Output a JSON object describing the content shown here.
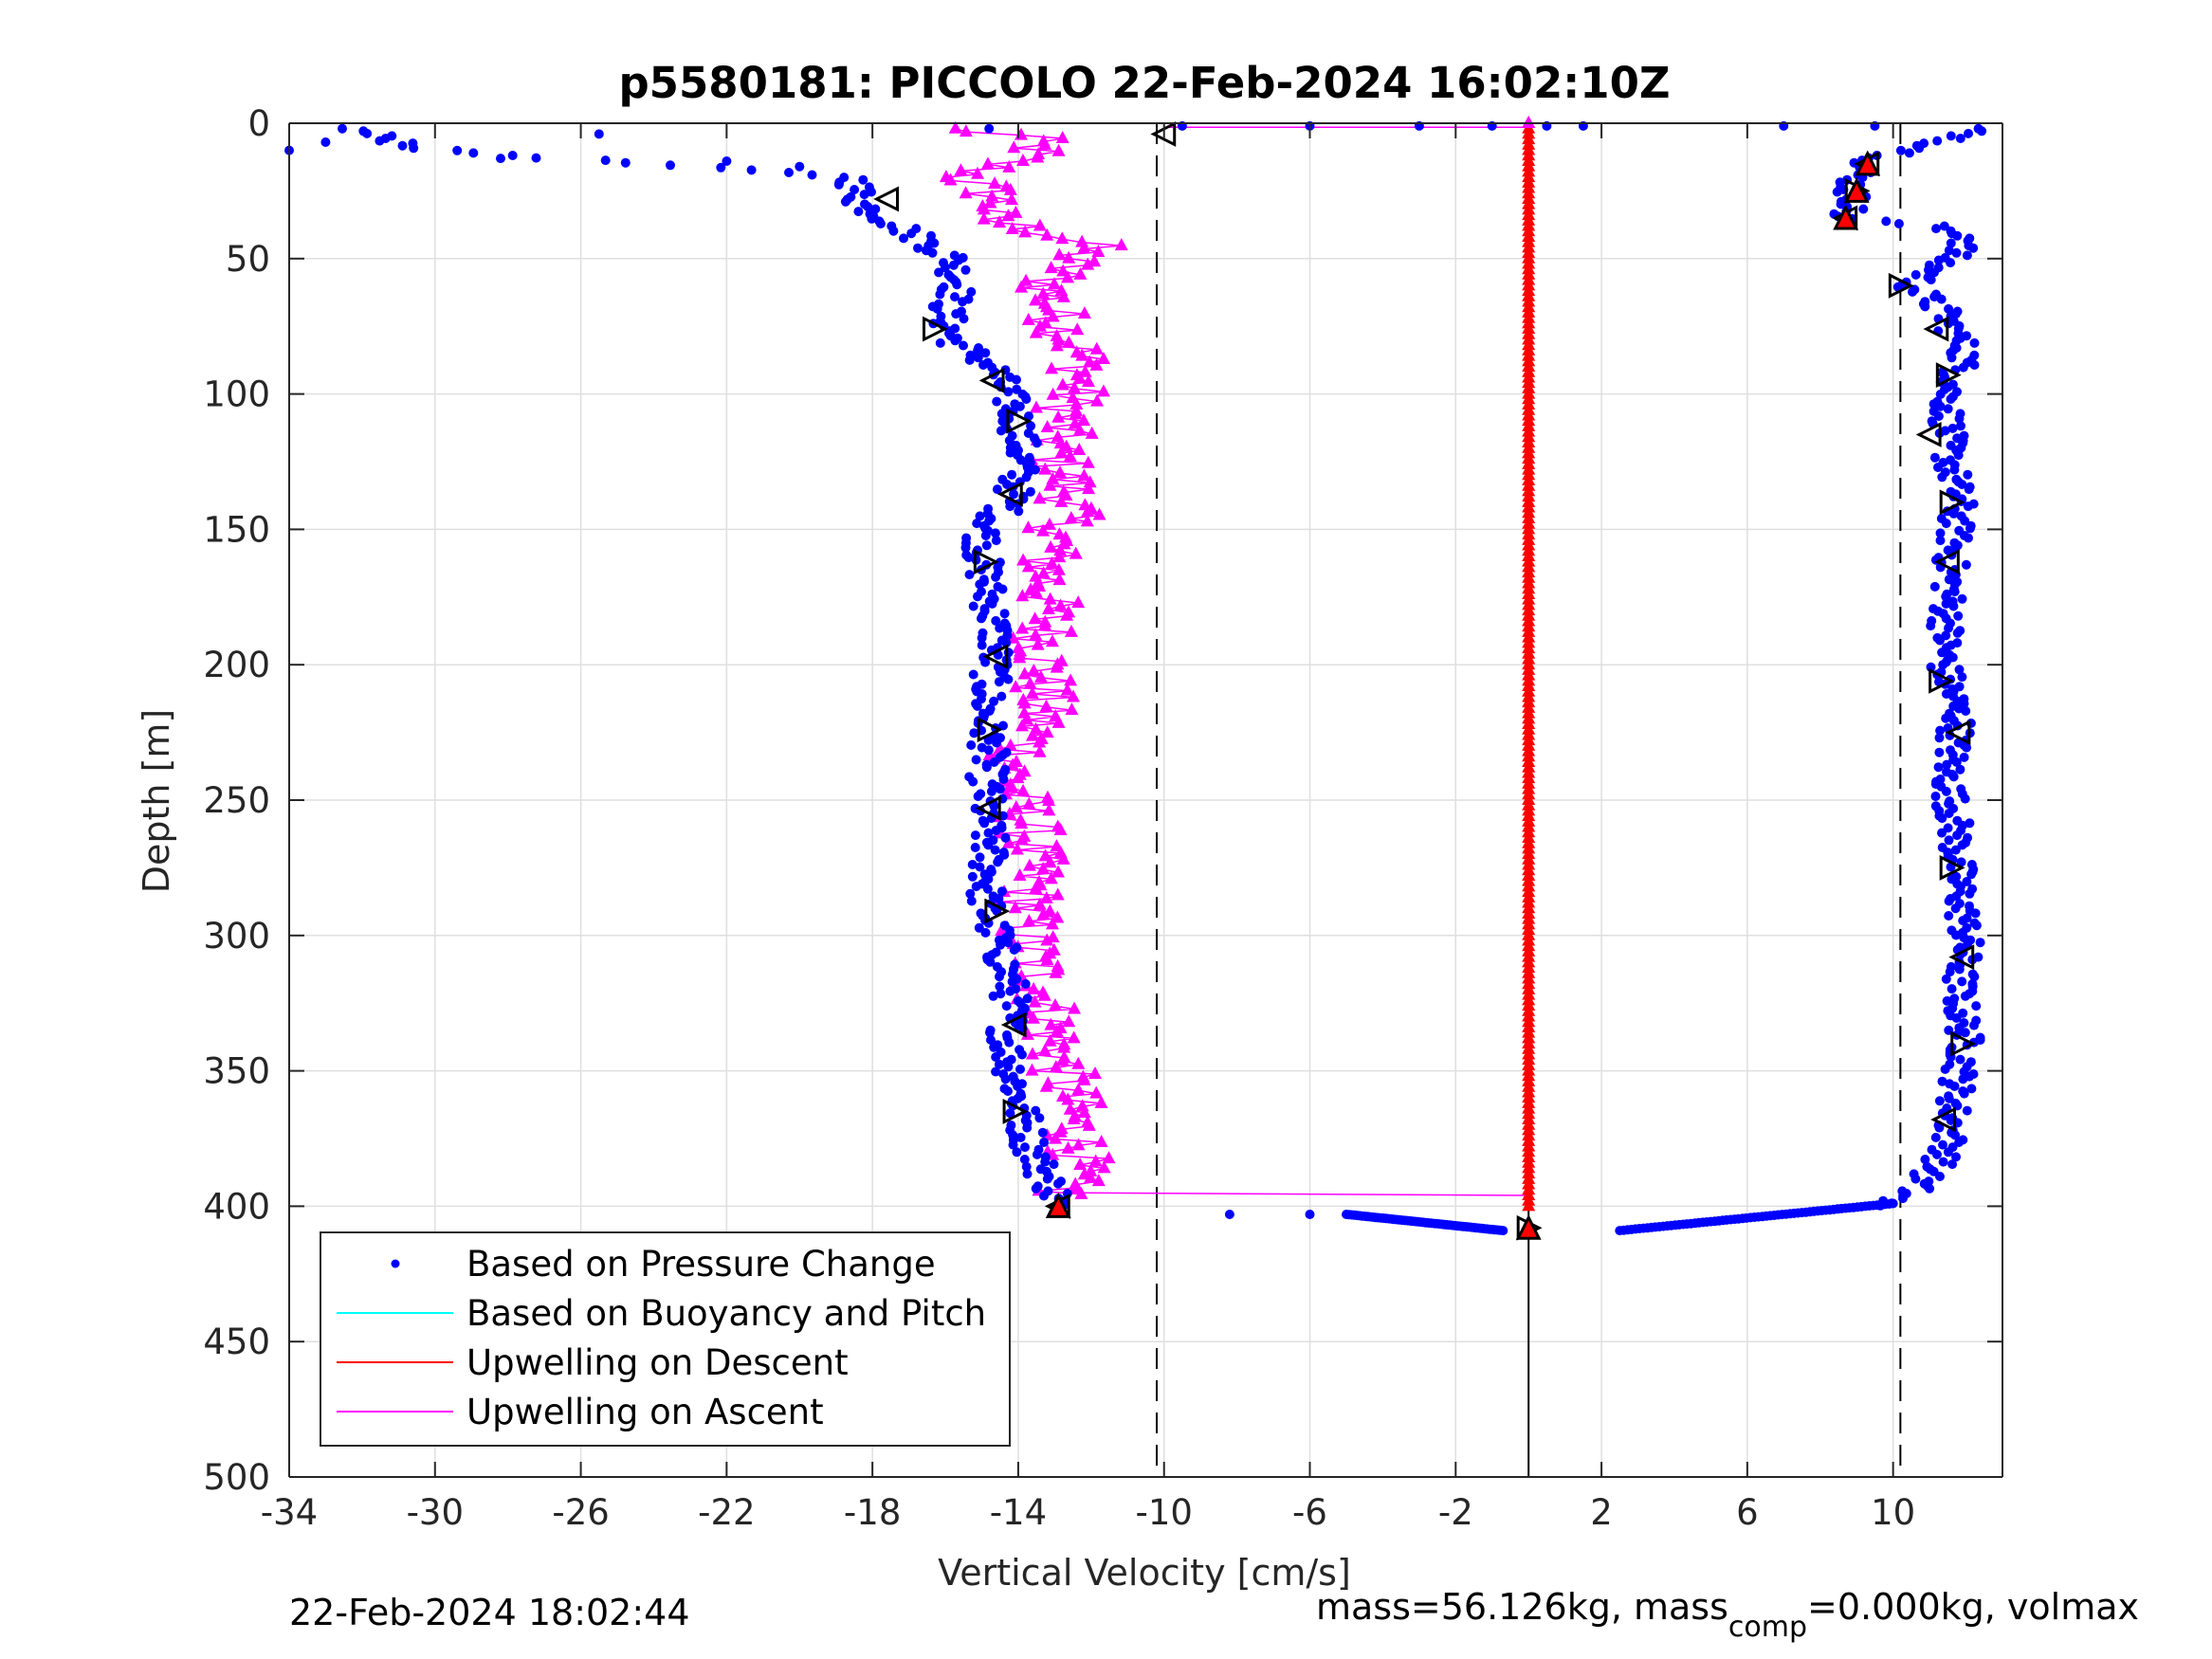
{
  "chart_data": {
    "type": "scatter",
    "title": "p5580181: PICCOLO 22-Feb-2024 16:02:10Z",
    "xlabel": "Vertical Velocity [cm/s]",
    "ylabel": "Depth [m]",
    "xlim": [
      -34,
      13
    ],
    "ylim": [
      0,
      500
    ],
    "y_reversed": true,
    "grid": true,
    "xticks": [
      -34,
      -30,
      -26,
      -22,
      -18,
      -14,
      -10,
      -6,
      -2,
      2,
      6,
      10
    ],
    "xtick_labels": [
      "-34",
      "-30",
      "-26",
      "-22",
      "-18",
      "-14",
      "-10",
      "-6",
      "-2",
      "2",
      "6",
      "10"
    ],
    "yticks": [
      0,
      50,
      100,
      150,
      200,
      250,
      300,
      350,
      400,
      450,
      500
    ],
    "ytick_labels": [
      "0",
      "50",
      "100",
      "150",
      "200",
      "250",
      "300",
      "350",
      "400",
      "450",
      "500"
    ],
    "legend_position": "bottom-left",
    "legend": [
      {
        "label": "Based on Pressure Change",
        "color": "#0000ff",
        "marker": "dot"
      },
      {
        "label": "Based on Buoyancy and Pitch",
        "color": "#00ffff",
        "marker": "line"
      },
      {
        "label": "Upwelling on Descent",
        "color": "#ff0000",
        "marker": "line"
      },
      {
        "label": "Upwelling on Ascent",
        "color": "#ff00ff",
        "marker": "line"
      }
    ],
    "vertical_reference_lines": [
      {
        "x": -10.2,
        "style": "dashed",
        "color": "#000000"
      },
      {
        "x": 10.2,
        "style": "dashed",
        "color": "#000000"
      },
      {
        "x": 0,
        "style": "solid",
        "color": "#000000"
      }
    ],
    "series": [
      {
        "name": "Based on Pressure Change",
        "color": "#0000ff",
        "descent": {
          "depth": [
            0,
            10,
            20,
            30,
            40,
            50,
            60,
            70,
            80,
            90,
            100,
            110,
            125,
            140,
            150,
            160,
            175,
            190,
            200,
            215,
            230,
            250,
            270,
            290,
            300,
            320,
            340,
            360,
            380,
            395,
            400
          ],
          "velocity": [
            -33,
            -30,
            -18.5,
            -18.3,
            -17,
            -15.8,
            -15.6,
            -16,
            -15.8,
            -14.7,
            -14.3,
            -14.0,
            -13.9,
            -14.2,
            -14.9,
            -15.0,
            -14.8,
            -14.6,
            -14.7,
            -14.9,
            -14.8,
            -14.9,
            -14.8,
            -14.9,
            -14.6,
            -14.2,
            -14.3,
            -14.0,
            -13.6,
            -13.0,
            -12.9
          ]
        },
        "ascent": {
          "depth": [
            400,
            395,
            380,
            360,
            340,
            320,
            300,
            280,
            260,
            240,
            220,
            200,
            180,
            160,
            140,
            120,
            100,
            85,
            70,
            60,
            50,
            42,
            38,
            35,
            30,
            25,
            20,
            15,
            10,
            5,
            0
          ],
          "velocity": [
            9.5,
            10.5,
            11.5,
            11.7,
            12.0,
            11.8,
            12.0,
            11.8,
            11.7,
            11.5,
            11.8,
            11.4,
            11.5,
            11.6,
            11.8,
            11.5,
            11.5,
            12.0,
            11.4,
            10.5,
            11.5,
            12.2,
            11.0,
            8.5,
            9.0,
            8.8,
            9.0,
            9.2,
            10.5,
            12.0,
            12.2
          ]
        },
        "surface_points": {
          "depth": [
            0,
            0,
            0,
            0,
            0,
            0,
            0,
            0
          ],
          "velocity": [
            -9.5,
            -6.0,
            -3.0,
            -1.0,
            0.5,
            1.5,
            7.0,
            9.5
          ]
        },
        "bottom_points": {
          "depth": [
            403,
            403,
            404,
            405,
            406,
            407,
            408,
            409,
            408,
            407,
            406,
            405,
            404,
            403
          ],
          "velocity": [
            -8.2,
            -6.0,
            -5.0,
            -4.0,
            -3.0,
            -2.0,
            -1.5,
            0.3,
            2.0,
            3.5,
            5.0,
            6.5,
            7.5,
            8.5
          ]
        }
      },
      {
        "name": "Upwelling on Descent",
        "color": "#ff0000",
        "depth": [
          0,
          400
        ],
        "velocity": [
          0,
          0
        ]
      },
      {
        "name": "Upwelling on Ascent",
        "color": "#ff00ff",
        "depth": [
          400,
          395,
          380,
          360,
          340,
          320,
          300,
          280,
          260,
          240,
          220,
          200,
          180,
          160,
          140,
          120,
          100,
          90,
          80,
          70,
          60,
          50,
          45,
          40,
          35,
          30,
          25,
          20,
          15,
          10,
          5,
          2
        ],
        "velocity": [
          -12.8,
          -12.8,
          -12.3,
          -12.6,
          -13.0,
          -13.3,
          -13.8,
          -13.6,
          -13.7,
          -14.2,
          -13.4,
          -13.3,
          -13.2,
          -13.2,
          -12.5,
          -13.0,
          -12.5,
          -12.2,
          -12.5,
          -13.0,
          -13.2,
          -12.5,
          -12.0,
          -13.3,
          -15.0,
          -14.5,
          -14.8,
          -15.5,
          -14.5,
          -13.5,
          -13.7,
          -16.0
        ]
      }
    ],
    "markers": {
      "descent_left_markers": {
        "shape": "triangle",
        "depth": [
          28,
          76,
          95,
          110,
          137,
          162,
          197,
          224,
          253,
          291,
          333,
          365,
          400
        ],
        "velocity": [
          -17.6,
          -16.3,
          -14.7,
          -14.0,
          -14.2,
          -14.9,
          -14.6,
          -14.8,
          -14.8,
          -14.6,
          -14.1,
          -14.1,
          -12.9
        ]
      },
      "ascent_right_markers": {
        "shape": "triangle",
        "depth": [
          15,
          25,
          35,
          60,
          76,
          93,
          115,
          140,
          162,
          206,
          225,
          275,
          308,
          340,
          368,
          408
        ],
        "velocity": [
          9.3,
          9.0,
          8.7,
          10.2,
          11.2,
          11.5,
          11.0,
          11.6,
          11.5,
          11.3,
          11.8,
          11.6,
          11.9,
          11.9,
          11.4,
          0.0
        ]
      },
      "red_filled": {
        "depth": [
          15,
          25,
          35,
          400,
          408
        ],
        "velocity": [
          9.3,
          9.0,
          8.7,
          -12.9,
          0.0
        ]
      },
      "surface_marker": {
        "depth": 4,
        "velocity": -10.0
      }
    }
  },
  "footer": {
    "timestamp": "22-Feb-2024 18:02:44",
    "mass_text": "mass=56.126kg, mass",
    "mass_sub": "comp",
    "mass_text_2": "=0.000kg, volmax"
  }
}
